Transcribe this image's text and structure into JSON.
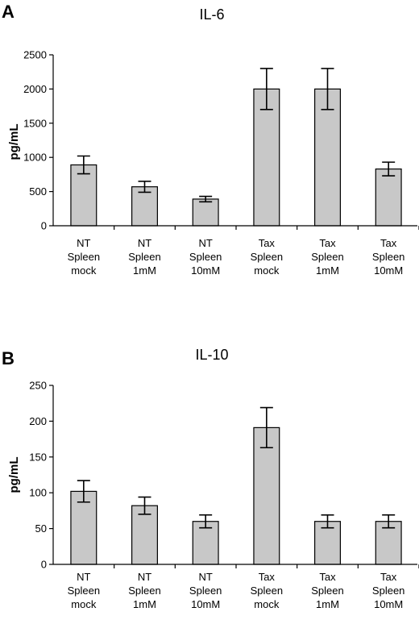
{
  "chart_data": [
    {
      "type": "bar",
      "panel": "A",
      "title": "IL-6",
      "ylabel": "pg/mL",
      "ylim": [
        0,
        2500
      ],
      "yticks": [
        "0",
        "500",
        "1000",
        "1500",
        "2000",
        "2500"
      ],
      "categories": [
        [
          "NT",
          "Spleen",
          "mock"
        ],
        [
          "NT",
          "Spleen",
          "1mM"
        ],
        [
          "NT",
          "Spleen",
          "10mM"
        ],
        [
          "Tax",
          "Spleen",
          "mock"
        ],
        [
          "Tax",
          "Spleen",
          "1mM"
        ],
        [
          "Tax",
          "Spleen",
          "10mM"
        ]
      ],
      "values": [
        890,
        570,
        390,
        2000,
        2000,
        830
      ],
      "errors": [
        130,
        80,
        40,
        300,
        300,
        100
      ],
      "bar_color": "#c8c8c8",
      "grid": false,
      "legend": false
    },
    {
      "type": "bar",
      "panel": "B",
      "title": "IL-10",
      "ylabel": "pg/mL",
      "ylim": [
        0,
        250
      ],
      "yticks": [
        "0",
        "50",
        "100",
        "150",
        "200",
        "250"
      ],
      "categories": [
        [
          "NT",
          "Spleen",
          "mock"
        ],
        [
          "NT",
          "Spleen",
          "1mM"
        ],
        [
          "NT",
          "Spleen",
          "10mM"
        ],
        [
          "Tax",
          "Spleen",
          "mock"
        ],
        [
          "Tax",
          "Spleen",
          "1mM"
        ],
        [
          "Tax",
          "Spleen",
          "10mM"
        ]
      ],
      "values": [
        102,
        82,
        60,
        191,
        60,
        60
      ],
      "errors": [
        15,
        12,
        9,
        28,
        9,
        9
      ],
      "bar_color": "#c8c8c8",
      "grid": false,
      "legend": false
    }
  ]
}
